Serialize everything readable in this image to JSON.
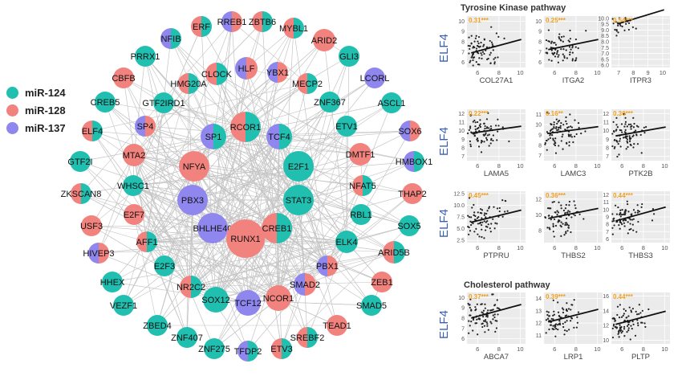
{
  "legend": [
    {
      "label": "miR-124",
      "color": "#20bfb0"
    },
    {
      "label": "miR-128",
      "color": "#f2827e"
    },
    {
      "label": "miR-137",
      "color": "#8f86ee"
    }
  ],
  "colors": {
    "teal": "#20bfb0",
    "red": "#f2827e",
    "purple": "#8f86ee",
    "edge": "#c4c4c4",
    "panel": "#ebebeb",
    "ylabel": "#3a5fb0",
    "corr": "#f0a020"
  },
  "network": {
    "nodes": [
      {
        "id": "ERF",
        "c": [
          "teal",
          "red"
        ]
      },
      {
        "id": "RREB1",
        "c": [
          "red",
          "purple"
        ]
      },
      {
        "id": "ZBTB6",
        "c": [
          "teal",
          "red"
        ]
      },
      {
        "id": "MYBL1",
        "c": [
          "teal",
          "red"
        ]
      },
      {
        "id": "NFIB",
        "c": [
          "teal",
          "purple"
        ]
      },
      {
        "id": "ARID2",
        "c": [
          "red"
        ]
      },
      {
        "id": "PRRX1",
        "c": [
          "teal"
        ]
      },
      {
        "id": "CLOCK",
        "c": [
          "teal",
          "red"
        ]
      },
      {
        "id": "HLF",
        "c": [
          "red",
          "purple"
        ]
      },
      {
        "id": "YBX1",
        "c": [
          "red",
          "purple"
        ]
      },
      {
        "id": "GLI3",
        "c": [
          "teal"
        ]
      },
      {
        "id": "CBFB",
        "c": [
          "red"
        ]
      },
      {
        "id": "HMG20A",
        "c": [
          "teal",
          "red"
        ]
      },
      {
        "id": "MECP2",
        "c": [
          "teal",
          "red"
        ]
      },
      {
        "id": "LCORL",
        "c": [
          "purple"
        ]
      },
      {
        "id": "CREB5",
        "c": [
          "teal"
        ]
      },
      {
        "id": "GTF2IRD1",
        "c": [
          "teal"
        ]
      },
      {
        "id": "ZNF367",
        "c": [
          "teal"
        ]
      },
      {
        "id": "ASCL1",
        "c": [
          "teal"
        ]
      },
      {
        "id": "RCOR1",
        "c": [
          "teal",
          "red"
        ]
      },
      {
        "id": "SP4",
        "c": [
          "red",
          "purple"
        ]
      },
      {
        "id": "SP1",
        "c": [
          "teal",
          "purple"
        ]
      },
      {
        "id": "TCF4",
        "c": [
          "teal",
          "purple"
        ]
      },
      {
        "id": "ETV1",
        "c": [
          "teal"
        ]
      },
      {
        "id": "SOX6",
        "c": [
          "red",
          "purple"
        ]
      },
      {
        "id": "ELF4",
        "c": [
          "teal",
          "red"
        ]
      },
      {
        "id": "MTA2",
        "c": [
          "red"
        ]
      },
      {
        "id": "DMTF1",
        "c": [
          "red"
        ]
      },
      {
        "id": "NFYA",
        "c": [
          "red"
        ]
      },
      {
        "id": "E2F1",
        "c": [
          "teal"
        ]
      },
      {
        "id": "HMBOX1",
        "c": [
          "teal",
          "purple"
        ]
      },
      {
        "id": "GTF2I",
        "c": [
          "teal"
        ]
      },
      {
        "id": "WHSC1",
        "c": [
          "teal"
        ]
      },
      {
        "id": "NFAT5",
        "c": [
          "teal",
          "red"
        ]
      },
      {
        "id": "THAP2",
        "c": [
          "red"
        ]
      },
      {
        "id": "ZKSCAN8",
        "c": [
          "teal",
          "red"
        ]
      },
      {
        "id": "PBX3",
        "c": [
          "purple"
        ]
      },
      {
        "id": "STAT3",
        "c": [
          "teal"
        ]
      },
      {
        "id": "E2F7",
        "c": [
          "red"
        ]
      },
      {
        "id": "RBL1",
        "c": [
          "teal"
        ]
      },
      {
        "id": "USF3",
        "c": [
          "red"
        ]
      },
      {
        "id": "BHLHE40",
        "c": [
          "purple"
        ]
      },
      {
        "id": "RUNX1",
        "c": [
          "red"
        ]
      },
      {
        "id": "CREB1",
        "c": [
          "teal",
          "red"
        ]
      },
      {
        "id": "SOX5",
        "c": [
          "teal"
        ]
      },
      {
        "id": "AFF1",
        "c": [
          "teal",
          "red"
        ]
      },
      {
        "id": "ELK4",
        "c": [
          "teal"
        ]
      },
      {
        "id": "ARID5B",
        "c": [
          "teal",
          "red"
        ]
      },
      {
        "id": "HIVEP3",
        "c": [
          "red",
          "purple"
        ]
      },
      {
        "id": "E2F3",
        "c": [
          "teal"
        ]
      },
      {
        "id": "PBX1",
        "c": [
          "red",
          "purple"
        ]
      },
      {
        "id": "HHEX",
        "c": [
          "teal"
        ]
      },
      {
        "id": "NR2C2",
        "c": [
          "teal",
          "red"
        ]
      },
      {
        "id": "SMAD2",
        "c": [
          "red",
          "purple"
        ]
      },
      {
        "id": "ZEB1",
        "c": [
          "red"
        ]
      },
      {
        "id": "SOX12",
        "c": [
          "teal"
        ]
      },
      {
        "id": "TCF12",
        "c": [
          "purple"
        ]
      },
      {
        "id": "NCOR1",
        "c": [
          "red"
        ]
      },
      {
        "id": "VEZF1",
        "c": [
          "teal"
        ]
      },
      {
        "id": "SMAD5",
        "c": [
          "teal"
        ]
      },
      {
        "id": "ZBED4",
        "c": [
          "teal"
        ]
      },
      {
        "id": "TEAD1",
        "c": [
          "red"
        ]
      },
      {
        "id": "ZNF407",
        "c": [
          "teal"
        ]
      },
      {
        "id": "SREBF2",
        "c": [
          "teal",
          "red"
        ]
      },
      {
        "id": "ZNF275",
        "c": [
          "teal"
        ]
      },
      {
        "id": "TFDP2",
        "c": [
          "teal",
          "purple"
        ]
      },
      {
        "id": "ETV3",
        "c": [
          "teal",
          "red"
        ]
      }
    ]
  },
  "plots": {
    "sections": [
      "Tyrosine Kinase pathway",
      "Cholesterol pathway"
    ],
    "ylabel": "ELF4",
    "rows": [
      [
        {
          "gene": "COL27A1",
          "r": "0.31***",
          "xticks": [
            "6",
            "8",
            "10"
          ],
          "yticks": [
            "10",
            "9",
            "8",
            "7",
            "6"
          ],
          "xlim": [
            5,
            10.5
          ],
          "ylim": [
            5.5,
            10.5
          ],
          "b0": 5.4,
          "b1": 0.28
        },
        {
          "gene": "ITGA2",
          "r": "0.25***",
          "xticks": [
            "6",
            "8",
            "10"
          ],
          "yticks": [
            "10",
            "9",
            "8",
            "7",
            "6"
          ],
          "xlim": [
            5,
            10.5
          ],
          "ylim": [
            5.5,
            10.5
          ],
          "b0": 6.1,
          "b1": 0.21
        },
        {
          "gene": "ITPR3",
          "r": "0.54***",
          "xticks": [
            "7",
            "8",
            "9",
            "10"
          ],
          "yticks": [
            "10.0",
            "9.5",
            "9.0",
            "8.5",
            "8.0",
            "7.5",
            "7.0",
            "6.5",
            "6.0"
          ],
          "xlim": [
            6.5,
            10.5
          ],
          "ylim": [
            5.8,
            10.2
          ],
          "b0": 6.9,
          "b1": 0.38
        }
      ],
      [
        {
          "gene": "LAMA5",
          "r": "0.22***",
          "xticks": [
            "6",
            "8",
            "10"
          ],
          "yticks": [
            "12",
            "11",
            "10",
            "9",
            "8",
            "7"
          ],
          "xlim": [
            5,
            10.5
          ],
          "ylim": [
            6.5,
            12.5
          ],
          "b0": 8.8,
          "b1": 0.17
        },
        {
          "gene": "LAMC3",
          "r": "0.16**",
          "xticks": [
            "6",
            "8",
            "10"
          ],
          "yticks": [
            "11",
            "10",
            "9",
            "8",
            "7"
          ],
          "xlim": [
            5,
            10.5
          ],
          "ylim": [
            6.5,
            11.5
          ],
          "b0": 8.4,
          "b1": 0.14
        },
        {
          "gene": "PTK2B",
          "r": "0.30***",
          "xticks": [
            "6",
            "8",
            "10"
          ],
          "yticks": [
            "12",
            "11",
            "10",
            "9",
            "8",
            "7"
          ],
          "xlim": [
            5,
            10.5
          ],
          "ylim": [
            6.5,
            12.5
          ],
          "b0": 8.2,
          "b1": 0.22
        }
      ],
      [
        {
          "gene": "PTPRU",
          "r": "0.45***",
          "xticks": [
            "6",
            "8",
            "10"
          ],
          "yticks": [
            "12.5",
            "10.0",
            "7.5",
            "5.0",
            "2.5"
          ],
          "xlim": [
            5,
            10.5
          ],
          "ylim": [
            2,
            13
          ],
          "b0": 3.4,
          "b1": 0.55
        },
        {
          "gene": "THBS2",
          "r": "0.36***",
          "xticks": [
            "6",
            "8",
            "10"
          ],
          "yticks": [
            "12",
            "10",
            "8"
          ],
          "xlim": [
            5,
            10.5
          ],
          "ylim": [
            6.5,
            13
          ],
          "b0": 8.1,
          "b1": 0.27
        },
        {
          "gene": "THBS3",
          "r": "0.44***",
          "xticks": [
            "6",
            "8",
            "10"
          ],
          "yticks": [
            "12",
            "11",
            "10",
            "9",
            "8",
            "7",
            "6"
          ],
          "xlim": [
            5,
            10.5
          ],
          "ylim": [
            5.5,
            12.5
          ],
          "b0": 6.3,
          "b1": 0.4
        }
      ],
      [
        {
          "gene": "ABCA7",
          "r": "0.37***",
          "xticks": [
            "6",
            "8",
            "10"
          ],
          "yticks": [
            "10",
            "9",
            "8",
            "7",
            "6"
          ],
          "xlim": [
            5,
            10.5
          ],
          "ylim": [
            5.5,
            10.5
          ],
          "b0": 6.5,
          "b1": 0.28
        },
        {
          "gene": "LRP1",
          "r": "0.39***",
          "xticks": [
            "6",
            "8",
            "10"
          ],
          "yticks": [
            "14",
            "13",
            "12",
            "11"
          ],
          "xlim": [
            5,
            10.5
          ],
          "ylim": [
            10.3,
            14.5
          ],
          "b0": 10.9,
          "b1": 0.22
        },
        {
          "gene": "PLTP",
          "r": "0.44***",
          "xticks": [
            "6",
            "8",
            "10"
          ],
          "yticks": [
            "16",
            "14",
            "12",
            "10"
          ],
          "xlim": [
            5,
            10.5
          ],
          "ylim": [
            9.5,
            16.5
          ],
          "b0": 10.1,
          "b1": 0.38
        }
      ]
    ]
  }
}
